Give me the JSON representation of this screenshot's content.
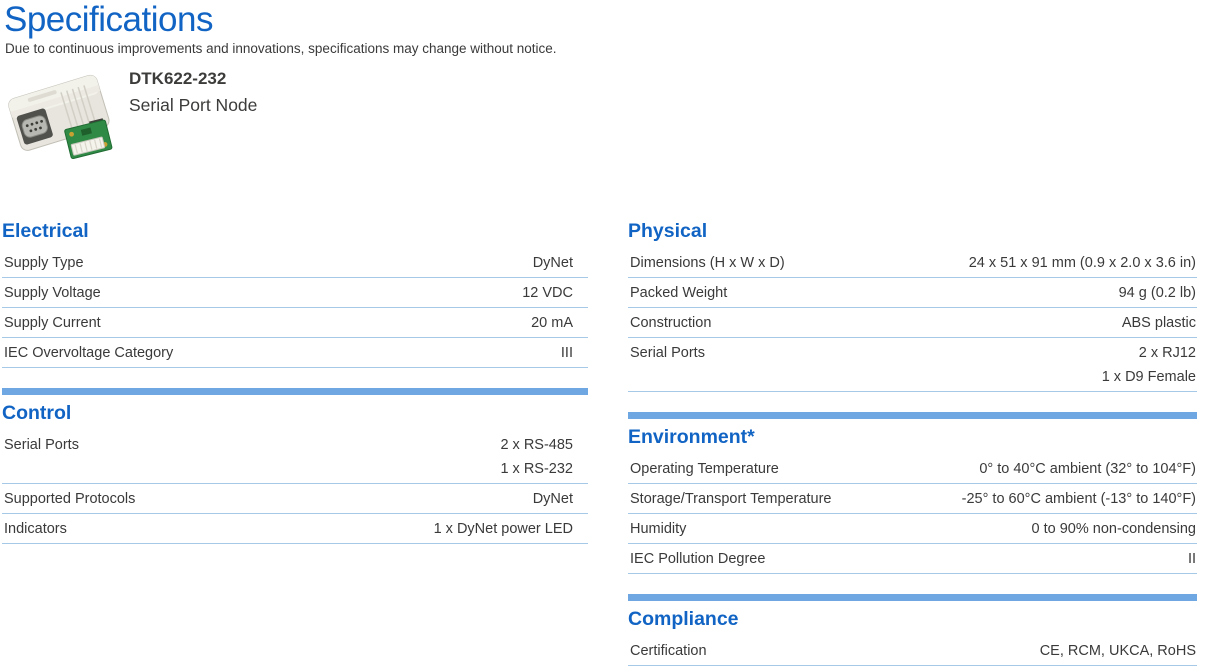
{
  "page": {
    "title": "Specifications",
    "subtitle": "Due to continuous improvements and innovations, specifications may change without notice."
  },
  "product": {
    "model": "DTK622-232",
    "name": "Serial Port Node"
  },
  "colors": {
    "accent_blue": "#1164c4",
    "section_bar_blue": "#6fa7e3",
    "row_divider_blue": "#a6c9e8",
    "body_text": "#3a3a3a"
  },
  "columns": {
    "left": [
      {
        "heading": "Electrical",
        "rows": [
          {
            "label": "Supply Type",
            "values": [
              "DyNet"
            ]
          },
          {
            "label": "Supply Voltage",
            "values": [
              "12 VDC"
            ]
          },
          {
            "label": "Supply Current",
            "values": [
              "20 mA"
            ]
          },
          {
            "label": "IEC Overvoltage Category",
            "values": [
              "III"
            ]
          }
        ]
      },
      {
        "heading": "Control",
        "rows": [
          {
            "label": "Serial Ports",
            "values": [
              "2 x RS-485",
              "1 x RS-232"
            ]
          },
          {
            "label": "Supported Protocols",
            "values": [
              "DyNet"
            ]
          },
          {
            "label": "Indicators",
            "values": [
              "1 x DyNet power LED"
            ]
          }
        ]
      }
    ],
    "right": [
      {
        "heading": "Physical",
        "rows": [
          {
            "label": "Dimensions (H x W x D)",
            "values": [
              "24 x 51 x 91 mm (0.9 x 2.0 x 3.6 in)"
            ]
          },
          {
            "label": "Packed Weight",
            "values": [
              "94 g (0.2 lb)"
            ]
          },
          {
            "label": "Construction",
            "values": [
              "ABS plastic"
            ]
          },
          {
            "label": "Serial Ports",
            "values": [
              "2 x RJ12",
              "1 x D9 Female"
            ]
          }
        ]
      },
      {
        "heading": "Environment*",
        "rows": [
          {
            "label": "Operating Temperature",
            "values": [
              "0° to 40°C ambient (32° to 104°F)"
            ]
          },
          {
            "label": "Storage/Transport Temperature",
            "values": [
              "-25° to 60°C ambient (-13° to 140°F)"
            ]
          },
          {
            "label": "Humidity",
            "values": [
              "0 to 90% non-condensing"
            ]
          },
          {
            "label": "IEC Pollution Degree",
            "values": [
              "II"
            ]
          }
        ]
      },
      {
        "heading": "Compliance",
        "rows": [
          {
            "label": "Certification",
            "values": [
              "CE, RCM, UKCA, RoHS"
            ]
          }
        ]
      }
    ]
  }
}
